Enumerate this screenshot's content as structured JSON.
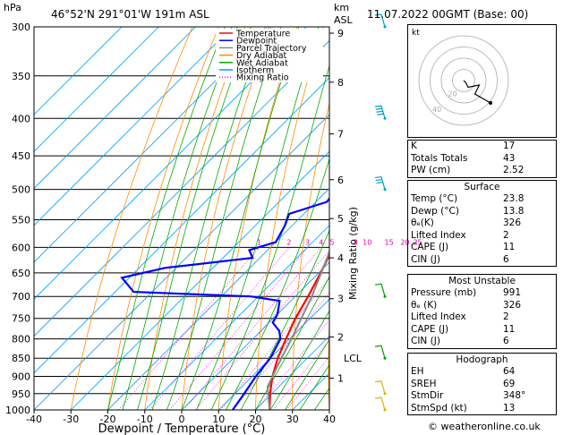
{
  "header": {
    "hpa_label": "hPa",
    "location": "46°52'N  291°01'W  191m  ASL",
    "km_label": "km",
    "asl_label": "ASL",
    "datetime": "11.07.2022  00GMT  (Base: 00)"
  },
  "chart_data": {
    "type": "line",
    "xlabel": "Dewpoint / Temperature (°C)",
    "ylabel_right": "Mixing Ratio (g/kg)",
    "xlim": [
      -40,
      40
    ],
    "ylim": [
      1000,
      300
    ],
    "y_scale": "log-pressure",
    "skew": true,
    "x_ticks": [
      "-40",
      "-30",
      "-20",
      "-10",
      "0",
      "10",
      "20",
      "30",
      "40"
    ],
    "pressure_ticks": [
      "300",
      "350",
      "400",
      "450",
      "500",
      "550",
      "600",
      "650",
      "700",
      "750",
      "800",
      "850",
      "900",
      "950",
      "1000"
    ],
    "km_ticks": [
      {
        "km": "9",
        "p": 306
      },
      {
        "km": "8",
        "p": 357
      },
      {
        "km": "7",
        "p": 420
      },
      {
        "km": "6",
        "p": 485
      },
      {
        "km": "5",
        "p": 548
      },
      {
        "km": "4",
        "p": 620
      },
      {
        "km": "3",
        "p": 705
      },
      {
        "km": "2",
        "p": 795
      },
      {
        "km": "1",
        "p": 905
      }
    ],
    "lcl_label": "LCL",
    "lcl_p": 850,
    "mixing_ratio_labels": [
      "1",
      "2",
      "3",
      "4",
      "5",
      "8",
      "10",
      "15",
      "20",
      "25"
    ],
    "legend": [
      "Temperature",
      "Dewpoint",
      "Parcel Trajectory",
      "Dry Adiabat",
      "Wet Adiabat",
      "Isotherm",
      "Mixing Ratio"
    ],
    "legend_colors": [
      "#ff0000",
      "#0000ff",
      "#888888",
      "#ff8c00",
      "#00aa00",
      "#00a0ff",
      "#ff00ff"
    ],
    "series": [
      {
        "name": "Temperature",
        "color": "#ff0000",
        "points": [
          [
            1000,
            23.8
          ],
          [
            950,
            19.5
          ],
          [
            900,
            15.5
          ],
          [
            850,
            12.0
          ],
          [
            800,
            9.0
          ],
          [
            750,
            6.0
          ],
          [
            700,
            3.5
          ],
          [
            650,
            0.5
          ],
          [
            600,
            -3.0
          ],
          [
            550,
            -7.0
          ],
          [
            500,
            -11.0
          ],
          [
            450,
            -17.0
          ],
          [
            400,
            -23.0
          ],
          [
            350,
            -30.5
          ],
          [
            300,
            -40.0
          ]
        ]
      },
      {
        "name": "Dewpoint",
        "color": "#0000ff",
        "points": [
          [
            1000,
            13.8
          ],
          [
            950,
            12.5
          ],
          [
            900,
            11.0
          ],
          [
            850,
            10.0
          ],
          [
            800,
            7.5
          ],
          [
            780,
            5.0
          ],
          [
            760,
            1.0
          ],
          [
            740,
            0.0
          ],
          [
            710,
            -3.0
          ],
          [
            700,
            -12.0
          ],
          [
            690,
            -45.0
          ],
          [
            660,
            -52.0
          ],
          [
            640,
            -43.0
          ],
          [
            620,
            -22.0
          ],
          [
            605,
            -25.0
          ],
          [
            590,
            -20.0
          ],
          [
            560,
            -22.0
          ],
          [
            540,
            -24.0
          ],
          [
            520,
            -17.0
          ],
          [
            500,
            -18.0
          ],
          [
            470,
            -16.0
          ],
          [
            450,
            -16.0
          ],
          [
            435,
            -20.0
          ],
          [
            410,
            -25.0
          ],
          [
            400,
            -30.0
          ],
          [
            380,
            -41.0
          ],
          [
            360,
            -44.0
          ],
          [
            330,
            -38.0
          ],
          [
            310,
            -50.0
          ],
          [
            300,
            -50.0
          ]
        ]
      },
      {
        "name": "Parcel Trajectory",
        "color": "#888888",
        "points": [
          [
            1000,
            23.8
          ],
          [
            930,
            17.0
          ],
          [
            880,
            14.5
          ],
          [
            850,
            13.0
          ],
          [
            800,
            10.5
          ],
          [
            700,
            4.5
          ],
          [
            600,
            -3.5
          ],
          [
            500,
            -12.5
          ],
          [
            450,
            -18.0
          ],
          [
            400,
            -25.0
          ],
          [
            350,
            -33.0
          ],
          [
            300,
            -43.0
          ]
        ]
      }
    ],
    "wind_barbs": [
      {
        "p": 300,
        "speed_kt": 10,
        "dir": 340,
        "color": "#00a0c0"
      },
      {
        "p": 400,
        "speed_kt": 35,
        "dir": 315,
        "color": "#00a0c0"
      },
      {
        "p": 500,
        "speed_kt": 25,
        "dir": 310,
        "color": "#00a0c0"
      },
      {
        "p": 700,
        "speed_kt": 10,
        "dir": 280,
        "color": "#00a000"
      },
      {
        "p": 850,
        "speed_kt": 10,
        "dir": 250,
        "color": "#00a000"
      },
      {
        "p": 950,
        "speed_kt": 5,
        "dir": 200,
        "color": "#e0b000"
      },
      {
        "p": 1000,
        "speed_kt": 5,
        "dir": 180,
        "color": "#e0b000"
      }
    ]
  },
  "hodograph": {
    "label": "kt",
    "ring_labels": [
      "20",
      "40"
    ],
    "points": [
      [
        0,
        0
      ],
      [
        2,
        -2
      ],
      [
        4,
        -6
      ],
      [
        14,
        -4
      ],
      [
        10,
        -12
      ],
      [
        24,
        -20
      ]
    ]
  },
  "indices": {
    "rows": [
      {
        "label": "K",
        "value": "17"
      },
      {
        "label": "Totals Totals",
        "value": "43"
      },
      {
        "label": "PW (cm)",
        "value": "2.52"
      }
    ]
  },
  "surface": {
    "title": "Surface",
    "rows": [
      {
        "label": "Temp (°C)",
        "value": "23.8"
      },
      {
        "label": "Dewp (°C)",
        "value": "13.8"
      },
      {
        "label": "θₑ(K)",
        "value": "326"
      },
      {
        "label": "Lifted Index",
        "value": "2"
      },
      {
        "label": "CAPE (J)",
        "value": "11"
      },
      {
        "label": "CIN (J)",
        "value": "6"
      }
    ]
  },
  "most_unstable": {
    "title": "Most Unstable",
    "rows": [
      {
        "label": "Pressure (mb)",
        "value": "991"
      },
      {
        "label": "θₑ (K)",
        "value": "326"
      },
      {
        "label": "Lifted Index",
        "value": "2"
      },
      {
        "label": "CAPE (J)",
        "value": "11"
      },
      {
        "label": "CIN (J)",
        "value": "6"
      }
    ]
  },
  "hodograph_table": {
    "title": "Hodograph",
    "rows": [
      {
        "label": "EH",
        "value": "64"
      },
      {
        "label": "SREH",
        "value": "69"
      },
      {
        "label": "StmDir",
        "value": "348°"
      },
      {
        "label": "StmSpd (kt)",
        "value": "13"
      }
    ]
  },
  "credit": "© weatheronline.co.uk"
}
